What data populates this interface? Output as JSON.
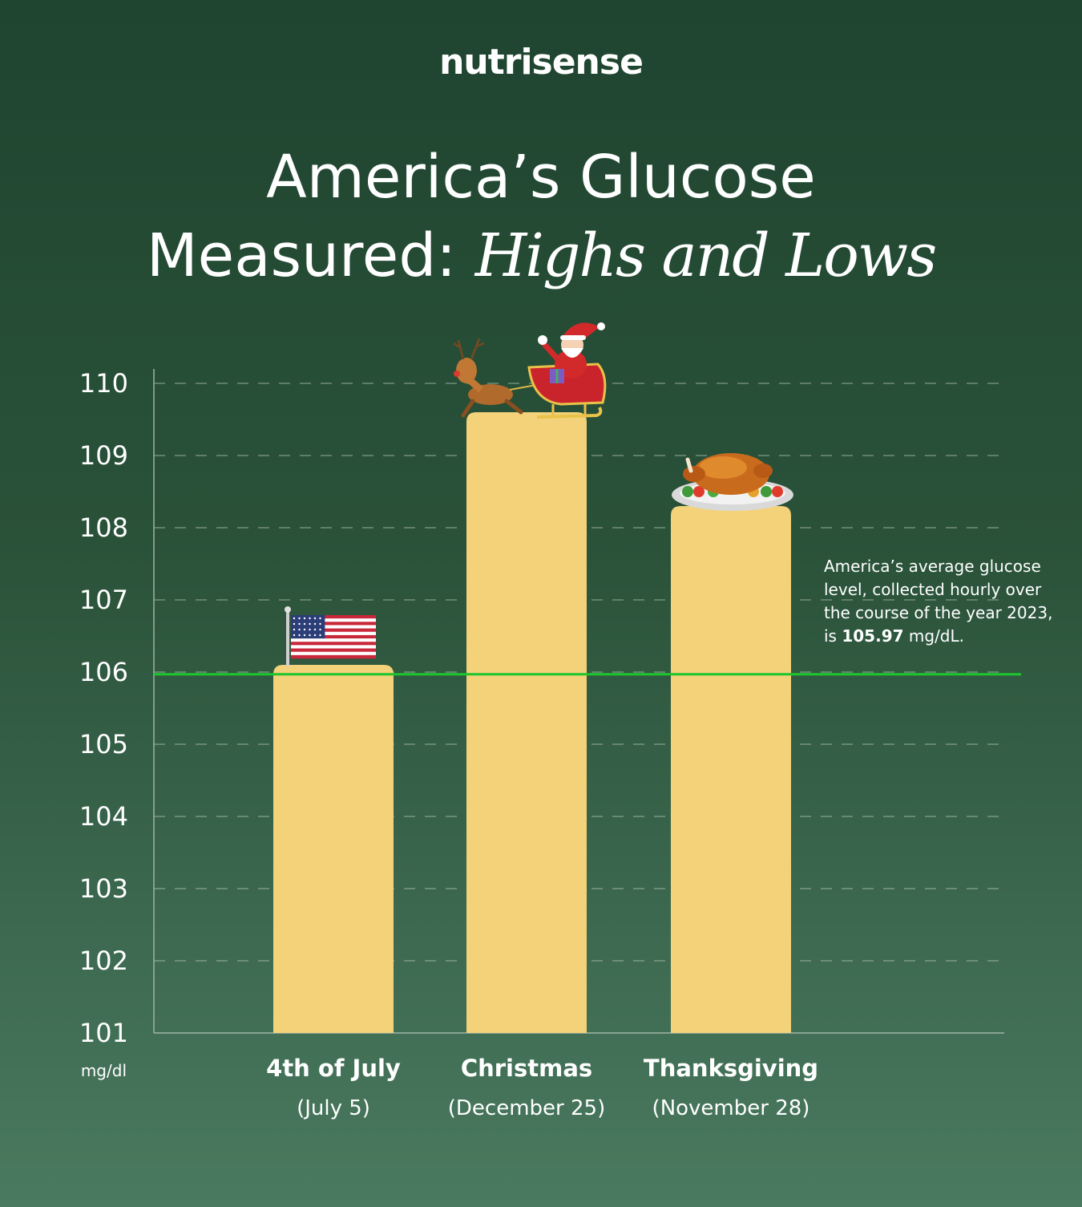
{
  "brand": "nutrisense",
  "title": {
    "line1": "America’s Glucose",
    "line2_prefix": "Measured:",
    "line2_italic": "Highs and Lows"
  },
  "colors": {
    "bar": "#f3d27a",
    "average_line": "#1ec52d",
    "grid": "#c8d4cc",
    "axis": "#9fb3a6"
  },
  "annotation": {
    "text_before": "America’s average glucose level, collected hourly over the course of the year 2023, is",
    "value": "105.97",
    "text_after": "mg/dL."
  },
  "chart_data": {
    "type": "bar",
    "categories": [
      "4th of July",
      "Christmas",
      "Thanksgiving"
    ],
    "category_subtitles": [
      "(July 5)",
      "(December 25)",
      "(November 28)"
    ],
    "values": [
      106.1,
      109.6,
      108.3
    ],
    "icons": [
      "us-flag-icon",
      "santa-sleigh-icon",
      "roast-turkey-icon"
    ],
    "average": 105.97,
    "ylim": [
      101,
      110
    ],
    "yticks": [
      110,
      109,
      108,
      107,
      106,
      105,
      104,
      103,
      102,
      101
    ],
    "ylabel": "mg/dl",
    "grid": true
  }
}
